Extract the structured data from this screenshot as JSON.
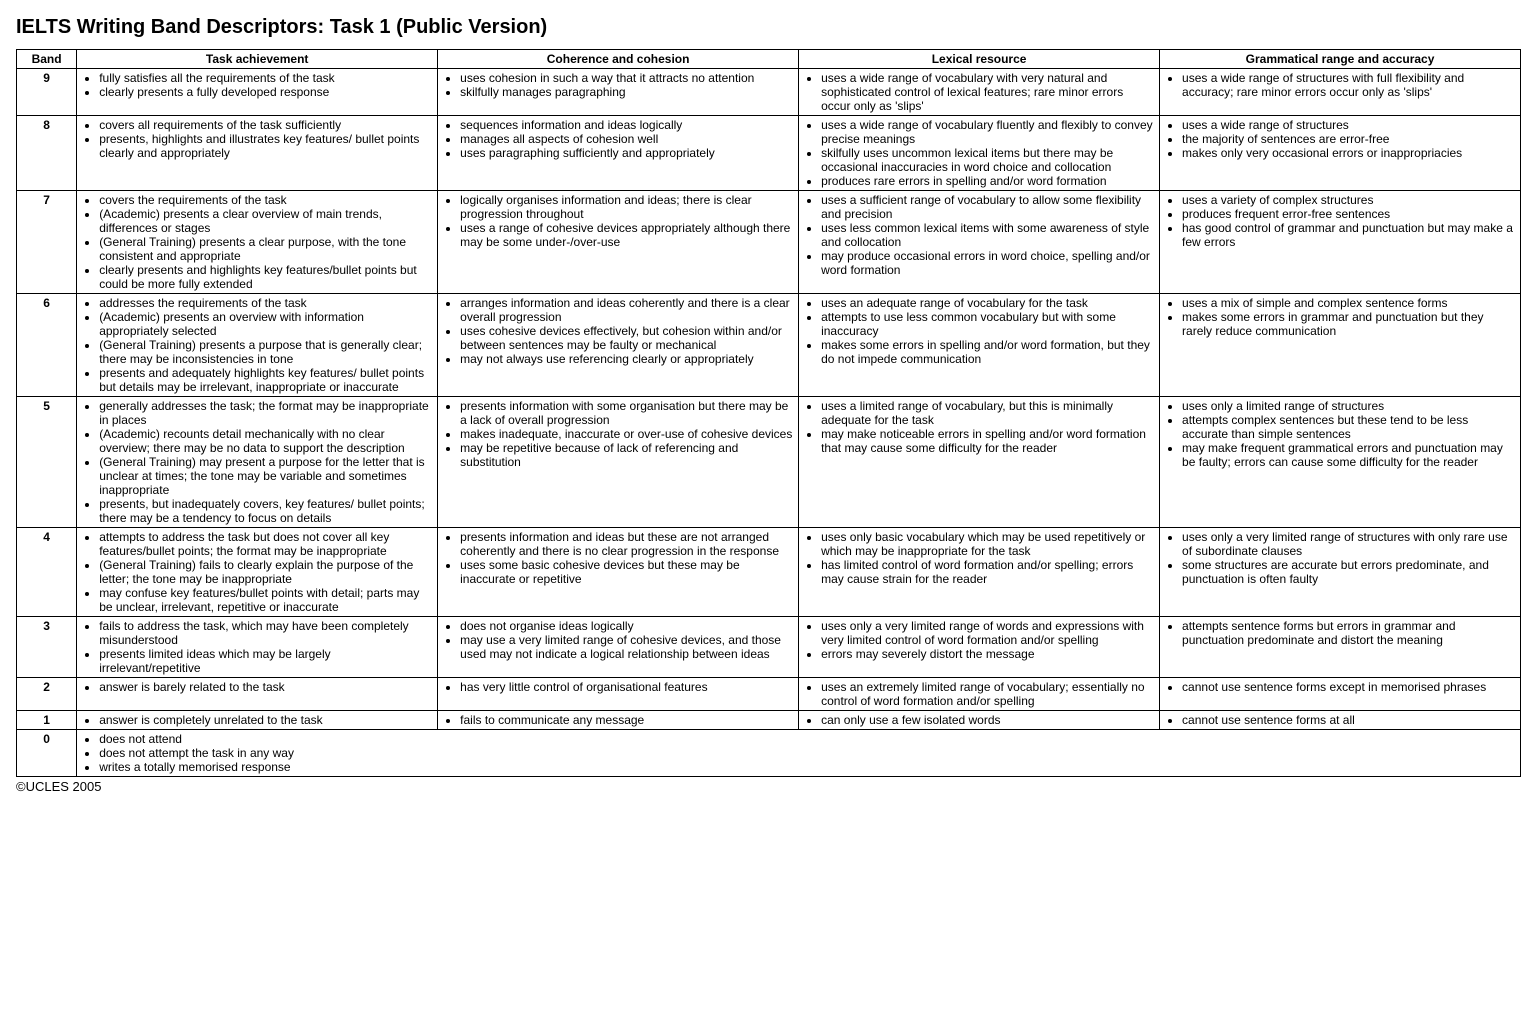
{
  "title": "IELTS Writing Band Descriptors: Task 1 (Public Version)",
  "footer": "©UCLES 2005",
  "columns": {
    "band": "Band",
    "ta": "Task achievement",
    "cc": "Coherence and cohesion",
    "lr": "Lexical resource",
    "gr": "Grammatical range and accuracy"
  },
  "bands": {
    "b9": {
      "band": "9",
      "ta": [
        "fully satisfies all the requirements of the task",
        "clearly presents a fully developed response"
      ],
      "cc": [
        "uses cohesion in such a way that it attracts no attention",
        "skilfully manages paragraphing"
      ],
      "lr": [
        "uses a wide range of vocabulary with very natural and sophisticated control of lexical features; rare minor errors occur only as 'slips'"
      ],
      "gr": [
        "uses a wide range of structures with full flexibility and accuracy; rare minor errors occur only as 'slips'"
      ]
    },
    "b8": {
      "band": "8",
      "ta": [
        "covers all requirements of the task sufficiently",
        "presents, highlights and illustrates key features/ bullet points clearly and appropriately"
      ],
      "cc": [
        "sequences information and ideas logically",
        "manages all aspects of cohesion well",
        "uses paragraphing sufficiently and appropriately"
      ],
      "lr": [
        "uses a wide range of vocabulary fluently and flexibly to convey precise meanings",
        "skilfully uses uncommon lexical items but there may be occasional inaccuracies in word choice and collocation",
        "produces rare errors in spelling and/or word formation"
      ],
      "gr": [
        "uses a wide range of structures",
        "the majority of sentences are error-free",
        "makes only very occasional errors or inappropriacies"
      ]
    },
    "b7": {
      "band": "7",
      "ta": [
        "covers the requirements of the task",
        "(Academic) presents a clear overview  of main trends, differences or stages",
        "(General Training) presents a clear purpose, with the tone consistent and appropriate",
        "clearly presents and highlights key features/bullet points but could be more fully extended"
      ],
      "cc": [
        "logically organises information and ideas; there is clear progression throughout",
        "uses a range of cohesive devices appropriately although there may be some under-/over-use"
      ],
      "lr": [
        "uses a sufficient range of vocabulary to allow some flexibility and precision",
        "uses less common lexical items with some awareness of style and collocation",
        "may produce occasional errors in  word choice, spelling and/or word formation"
      ],
      "gr": [
        "uses a variety of complex structures",
        "produces frequent error-free sentences",
        "has good control of grammar and punctuation but may make a few errors"
      ]
    },
    "b6": {
      "band": "6",
      "ta": [
        "addresses the requirements of the task",
        "(Academic) presents an overview with information appropriately selected",
        "(General Training) presents a purpose that is generally clear; there may be inconsistencies in tone",
        "presents and adequately highlights key features/ bullet points but details may be irrelevant, inappropriate or inaccurate"
      ],
      "cc": [
        "arranges information and ideas coherently and there is a clear overall progression",
        "uses cohesive devices effectively, but cohesion within and/or between sentences may be faulty or mechanical",
        "may not always use referencing clearly or appropriately"
      ],
      "lr": [
        "uses an adequate range of vocabulary for the task",
        "attempts to use less common vocabulary but with some inaccuracy",
        "makes some errors in spelling and/or word formation, but they do not impede communication"
      ],
      "gr": [
        "uses a mix of simple and complex sentence forms",
        "makes some errors in grammar and punctuation but they rarely reduce communication"
      ]
    },
    "b5": {
      "band": "5",
      "ta": [
        "generally addresses the task; the format may be inappropriate in places",
        "(Academic) recounts detail mechanically with no clear overview; there may be no data to support the description",
        "(General Training) may present a purpose for the letter that is unclear at times; the tone may be variable and sometimes inappropriate",
        "presents, but inadequately covers, key features/ bullet points; there may be a tendency to focus on details"
      ],
      "cc": [
        "presents information with some organisation but there may be a lack of overall progression",
        "makes inadequate, inaccurate or over-use of cohesive devices",
        "may be repetitive because of lack of referencing and substitution"
      ],
      "lr": [
        "uses a limited range of vocabulary, but this is minimally adequate for the task",
        "may make noticeable errors in spelling and/or word formation that may cause some difficulty for the reader"
      ],
      "gr": [
        "uses only a limited range of structures",
        "attempts complex sentences but these tend to be less accurate than simple sentences",
        "may make frequent grammatical errors and punctuation may be faulty; errors can cause some difficulty for the reader"
      ]
    },
    "b4": {
      "band": "4",
      "ta": [
        "attempts to address the task but does not cover all key features/bullet points; the format may be inappropriate",
        "(General Training) fails to clearly explain the purpose of the letter; the tone may be inappropriate",
        "may confuse key features/bullet points with detail; parts may be unclear, irrelevant, repetitive or inaccurate"
      ],
      "cc": [
        "presents information and ideas but these are not arranged coherently and there is no clear progression in the response",
        "uses some basic cohesive devices but these may be inaccurate or repetitive"
      ],
      "lr": [
        "uses only basic vocabulary which may be used repetitively or which may be inappropriate for the task",
        "has limited control of word formation and/or spelling; errors may cause strain for the reader"
      ],
      "gr": [
        "uses only a very limited range of structures with only rare use of subordinate clauses",
        "some structures are accurate but errors predominate, and punctuation is often faulty"
      ]
    },
    "b3": {
      "band": "3",
      "ta": [
        "fails to address the task, which may have been completely misunderstood",
        "presents limited ideas which may be largely irrelevant/repetitive"
      ],
      "cc": [
        "does not organise ideas logically",
        "may use a very limited range of cohesive devices, and those used may not indicate a logical relationship between ideas"
      ],
      "lr": [
        "uses only a very limited range of words and expressions with very limited control of word formation and/or spelling",
        "errors may severely distort the message"
      ],
      "gr": [
        "attempts sentence forms but errors in grammar and punctuation predominate and distort the meaning"
      ]
    },
    "b2": {
      "band": "2",
      "ta": [
        "answer is barely related to the task"
      ],
      "cc": [
        "has very little control of organisational features"
      ],
      "lr": [
        "uses an extremely limited range of vocabulary; essentially no control of word formation and/or spelling"
      ],
      "gr": [
        "cannot use sentence forms except in memorised phrases"
      ]
    },
    "b1": {
      "band": "1",
      "ta": [
        "answer is completely unrelated to the task"
      ],
      "cc": [
        "fails to communicate any message"
      ],
      "lr": [
        "can only use a few isolated words"
      ],
      "gr": [
        "cannot use sentence forms at all"
      ]
    },
    "b0": {
      "band": "0",
      "ta": [
        "does not attend",
        "does not attempt the task in any way",
        "writes a totally memorised response"
      ]
    }
  }
}
